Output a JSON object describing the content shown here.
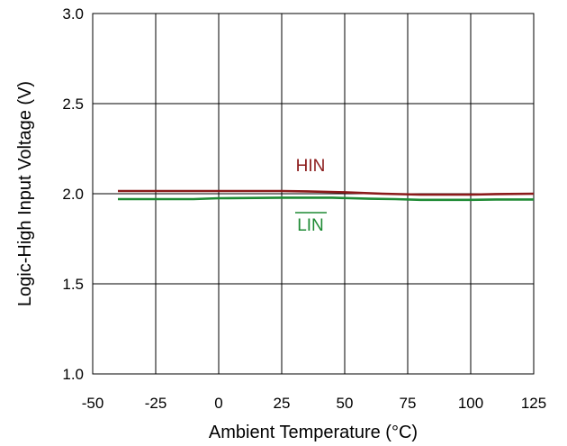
{
  "chart_data": {
    "type": "line",
    "title": "",
    "xlabel": "Ambient Temperature (°C)",
    "ylabel": "Logic-High Input Voltage (V)",
    "xlim": [
      -50,
      125
    ],
    "ylim": [
      1.0,
      3.0
    ],
    "xticks": [
      -50,
      -25,
      0,
      25,
      50,
      75,
      100,
      125
    ],
    "yticks": [
      1.0,
      1.5,
      2.0,
      2.5,
      3.0
    ],
    "x_tick_labels": [
      "-50",
      "-25",
      "0",
      "25",
      "50",
      "75",
      "100",
      "125"
    ],
    "y_tick_labels": [
      "1.0",
      "1.5",
      "2.0",
      "2.5",
      "3.0"
    ],
    "grid": true,
    "series": [
      {
        "name": "HIN",
        "color": "#8B1A1A",
        "x": [
          -40,
          -25,
          0,
          25,
          35,
          50,
          65,
          80,
          100,
          110,
          125
        ],
        "y": [
          2.015,
          2.015,
          2.015,
          2.015,
          2.013,
          2.008,
          2.0,
          1.995,
          1.995,
          1.998,
          2.0
        ]
      },
      {
        "name": "LIN",
        "overline": true,
        "color": "#1E8A34",
        "x": [
          -40,
          -25,
          -10,
          0,
          25,
          45,
          60,
          70,
          80,
          90,
          100,
          110,
          125
        ],
        "y": [
          1.97,
          1.97,
          1.97,
          1.975,
          1.978,
          1.978,
          1.972,
          1.97,
          1.966,
          1.966,
          1.966,
          1.968,
          1.968
        ]
      }
    ]
  }
}
